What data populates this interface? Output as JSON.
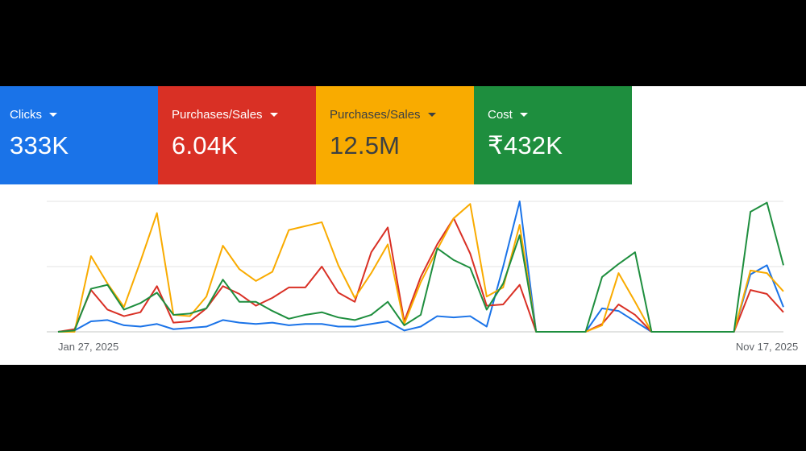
{
  "metrics": [
    {
      "label": "Clicks",
      "value": "333K",
      "color": "#1a73e8",
      "text_color": "#ffffff"
    },
    {
      "label": "Purchases/Sales",
      "value": "6.04K",
      "color": "#d93025",
      "text_color": "#ffffff"
    },
    {
      "label": "Purchases/Sales",
      "value": "12.5M",
      "color": "#f9ab00",
      "text_color": "#3c4043"
    },
    {
      "label": "Cost",
      "value": "₹432K",
      "color": "#1e8e3e",
      "text_color": "#ffffff"
    }
  ],
  "chart_data": {
    "type": "line",
    "x_tick_labels": [
      {
        "index": 0,
        "label": "Jan 27, 2025"
      },
      {
        "index": 43,
        "label": "Nov 17, 2025"
      }
    ],
    "ylim": [
      0,
      100
    ],
    "y_gridlines": [
      0,
      50,
      100
    ],
    "y_axis_labels_shown": false,
    "grid": true,
    "series": [
      {
        "metric": 0,
        "color": "#1a73e8",
        "values": [
          0,
          1,
          8,
          9,
          5,
          4,
          6,
          2,
          3,
          4,
          9,
          7,
          6,
          7,
          5,
          6,
          6,
          4,
          4,
          6,
          8,
          1,
          4,
          12,
          11,
          12,
          4,
          50,
          100,
          0,
          0,
          0,
          0,
          18,
          16,
          8,
          0,
          0,
          0,
          0,
          0,
          0,
          44,
          51,
          19
        ]
      },
      {
        "metric": 1,
        "color": "#d93025",
        "values": [
          0,
          2,
          32,
          17,
          12,
          15,
          35,
          7,
          8,
          18,
          35,
          29,
          20,
          26,
          34,
          34,
          50,
          30,
          23,
          61,
          80,
          8,
          42,
          67,
          87,
          60,
          20,
          21,
          36,
          0,
          0,
          0,
          0,
          6,
          21,
          13,
          0,
          0,
          0,
          0,
          0,
          0,
          32,
          29,
          15
        ]
      },
      {
        "metric": 2,
        "color": "#f9ab00",
        "values": [
          0,
          0,
          58,
          37,
          19,
          54,
          91,
          13,
          12,
          27,
          66,
          48,
          39,
          46,
          78,
          81,
          84,
          51,
          26,
          45,
          67,
          6,
          38,
          63,
          87,
          98,
          27,
          34,
          82,
          0,
          0,
          0,
          0,
          5,
          45,
          23,
          0,
          0,
          0,
          0,
          0,
          0,
          47,
          45,
          31
        ]
      },
      {
        "metric": 3,
        "color": "#1e8e3e",
        "values": [
          0,
          1,
          33,
          36,
          17,
          22,
          30,
          13,
          14,
          18,
          40,
          23,
          23,
          16,
          10,
          13,
          15,
          11,
          9,
          13,
          23,
          5,
          13,
          64,
          55,
          49,
          17,
          37,
          74,
          0,
          0,
          0,
          0,
          42,
          52,
          61,
          0,
          0,
          0,
          0,
          0,
          0,
          92,
          99,
          51
        ]
      }
    ]
  }
}
